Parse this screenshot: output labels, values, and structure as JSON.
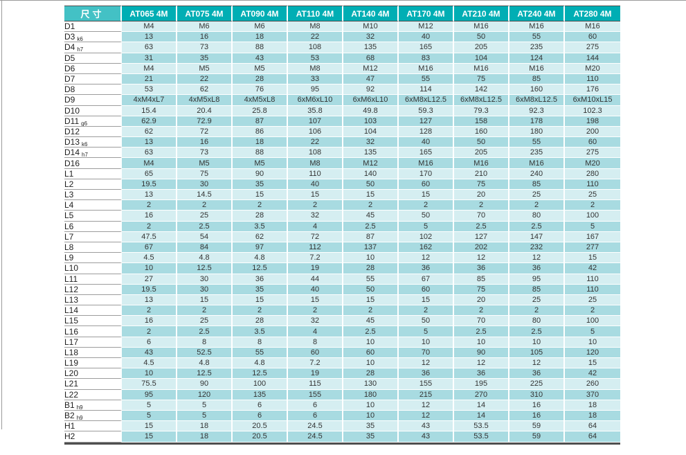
{
  "colors": {
    "header_teal": "#00aeb4",
    "size_header_teal": "#43c1c5",
    "row_light": "#d5eef1",
    "row_dark": "#a8dbe1",
    "header_text": "#ffffff",
    "body_text": "#333333",
    "label_underline": "#9c9c9c",
    "bottom_rule": "#4f4f4f"
  },
  "table": {
    "size_header": "尺寸",
    "columns": [
      "AT065 4M",
      "AT075 4M",
      "AT090 4M",
      "AT110 4M",
      "AT140 4M",
      "AT170 4M",
      "AT210 4M",
      "AT240 4M",
      "AT280 4M"
    ],
    "rows": [
      {
        "label": "D1",
        "sub": "",
        "values": [
          "M4",
          "M6",
          "M6",
          "M8",
          "M10",
          "M12",
          "M16",
          "M16",
          "M16"
        ]
      },
      {
        "label": "D3",
        "sub": "k6",
        "values": [
          "13",
          "16",
          "18",
          "22",
          "32",
          "40",
          "50",
          "55",
          "60"
        ]
      },
      {
        "label": "D4",
        "sub": "h7",
        "values": [
          "63",
          "73",
          "88",
          "108",
          "135",
          "165",
          "205",
          "235",
          "275"
        ]
      },
      {
        "label": "D5",
        "sub": "",
        "values": [
          "31",
          "35",
          "43",
          "53",
          "68",
          "83",
          "104",
          "124",
          "144"
        ]
      },
      {
        "label": "D6",
        "sub": "",
        "values": [
          "M4",
          "M5",
          "M5",
          "M8",
          "M12",
          "M16",
          "M16",
          "M16",
          "M20"
        ]
      },
      {
        "label": "D7",
        "sub": "",
        "values": [
          "21",
          "22",
          "28",
          "33",
          "47",
          "55",
          "75",
          "85",
          "110"
        ]
      },
      {
        "label": "D8",
        "sub": "",
        "values": [
          "53",
          "62",
          "76",
          "95",
          "92",
          "114",
          "142",
          "160",
          "176"
        ]
      },
      {
        "label": "D9",
        "sub": "",
        "values": [
          "4xM4xL7",
          "4xM5xL8",
          "4xM5xL8",
          "6xM6xL10",
          "6xM6xL10",
          "6xM8xL12.5",
          "6xM8xL12.5",
          "6xM8xL12.5",
          "6xM10xL15"
        ]
      },
      {
        "label": "D10",
        "sub": "",
        "values": [
          "15.4",
          "20.4",
          "25.8",
          "35.8",
          "49.8",
          "59.3",
          "79.3",
          "92.3",
          "102.3"
        ]
      },
      {
        "label": "D11",
        "sub": "g6",
        "values": [
          "62.9",
          "72.9",
          "87",
          "107",
          "103",
          "127",
          "158",
          "178",
          "198"
        ]
      },
      {
        "label": "D12",
        "sub": "",
        "values": [
          "62",
          "72",
          "86",
          "106",
          "104",
          "128",
          "160",
          "180",
          "200"
        ]
      },
      {
        "label": "D13",
        "sub": "k6",
        "values": [
          "13",
          "16",
          "18",
          "22",
          "32",
          "40",
          "50",
          "55",
          "60"
        ]
      },
      {
        "label": "D14",
        "sub": "h7",
        "values": [
          "63",
          "73",
          "88",
          "108",
          "135",
          "165",
          "205",
          "235",
          "275"
        ]
      },
      {
        "label": "D16",
        "sub": "",
        "values": [
          "M4",
          "M5",
          "M5",
          "M8",
          "M12",
          "M16",
          "M16",
          "M16",
          "M20"
        ]
      },
      {
        "label": "L1",
        "sub": "",
        "values": [
          "65",
          "75",
          "90",
          "110",
          "140",
          "170",
          "210",
          "240",
          "280"
        ]
      },
      {
        "label": "L2",
        "sub": "",
        "values": [
          "19.5",
          "30",
          "35",
          "40",
          "50",
          "60",
          "75",
          "85",
          "110"
        ]
      },
      {
        "label": "L3",
        "sub": "",
        "values": [
          "13",
          "14.5",
          "15",
          "15",
          "15",
          "15",
          "20",
          "25",
          "25"
        ]
      },
      {
        "label": "L4",
        "sub": "",
        "values": [
          "2",
          "2",
          "2",
          "2",
          "2",
          "2",
          "2",
          "2",
          "2"
        ]
      },
      {
        "label": "L5",
        "sub": "",
        "values": [
          "16",
          "25",
          "28",
          "32",
          "45",
          "50",
          "70",
          "80",
          "100"
        ]
      },
      {
        "label": "L6",
        "sub": "",
        "values": [
          "2",
          "2.5",
          "3.5",
          "4",
          "2.5",
          "5",
          "2.5",
          "2.5",
          "5"
        ]
      },
      {
        "label": "L7",
        "sub": "",
        "values": [
          "47.5",
          "54",
          "62",
          "72",
          "87",
          "102",
          "127",
          "147",
          "167"
        ]
      },
      {
        "label": "L8",
        "sub": "",
        "values": [
          "67",
          "84",
          "97",
          "112",
          "137",
          "162",
          "202",
          "232",
          "277"
        ]
      },
      {
        "label": "L9",
        "sub": "",
        "values": [
          "4.5",
          "4.8",
          "4.8",
          "7.2",
          "10",
          "12",
          "12",
          "12",
          "15"
        ]
      },
      {
        "label": "L10",
        "sub": "",
        "values": [
          "10",
          "12.5",
          "12.5",
          "19",
          "28",
          "36",
          "36",
          "36",
          "42"
        ]
      },
      {
        "label": "L11",
        "sub": "",
        "values": [
          "27",
          "30",
          "36",
          "44",
          "55",
          "67",
          "85",
          "95",
          "110"
        ]
      },
      {
        "label": "L12",
        "sub": "",
        "values": [
          "19.5",
          "30",
          "35",
          "40",
          "50",
          "60",
          "75",
          "85",
          "110"
        ]
      },
      {
        "label": "L13",
        "sub": "",
        "values": [
          "13",
          "15",
          "15",
          "15",
          "15",
          "15",
          "20",
          "25",
          "25"
        ]
      },
      {
        "label": "L14",
        "sub": "",
        "values": [
          "2",
          "2",
          "2",
          "2",
          "2",
          "2",
          "2",
          "2",
          "2"
        ]
      },
      {
        "label": "L15",
        "sub": "",
        "values": [
          "16",
          "25",
          "28",
          "32",
          "45",
          "50",
          "70",
          "80",
          "100"
        ]
      },
      {
        "label": "L16",
        "sub": "",
        "values": [
          "2",
          "2.5",
          "3.5",
          "4",
          "2.5",
          "5",
          "2.5",
          "2.5",
          "5"
        ]
      },
      {
        "label": "L17",
        "sub": "",
        "values": [
          "6",
          "8",
          "8",
          "8",
          "10",
          "10",
          "10",
          "10",
          "10"
        ]
      },
      {
        "label": "L18",
        "sub": "",
        "values": [
          "43",
          "52.5",
          "55",
          "60",
          "60",
          "70",
          "90",
          "105",
          "120"
        ]
      },
      {
        "label": "L19",
        "sub": "",
        "values": [
          "4.5",
          "4.8",
          "4.8",
          "7.2",
          "10",
          "12",
          "12",
          "12",
          "15"
        ]
      },
      {
        "label": "L20",
        "sub": "",
        "values": [
          "10",
          "12.5",
          "12.5",
          "19",
          "28",
          "36",
          "36",
          "36",
          "42"
        ]
      },
      {
        "label": "L21",
        "sub": "",
        "values": [
          "75.5",
          "90",
          "100",
          "115",
          "130",
          "155",
          "195",
          "225",
          "260"
        ]
      },
      {
        "label": "L22",
        "sub": "",
        "values": [
          "95",
          "120",
          "135",
          "155",
          "180",
          "215",
          "270",
          "310",
          "370"
        ]
      },
      {
        "label": "B1",
        "sub": "h9",
        "values": [
          "5",
          "5",
          "6",
          "6",
          "10",
          "12",
          "14",
          "16",
          "18"
        ]
      },
      {
        "label": "B2",
        "sub": "h9",
        "values": [
          "5",
          "5",
          "6",
          "6",
          "10",
          "12",
          "14",
          "16",
          "18"
        ]
      },
      {
        "label": "H1",
        "sub": "",
        "values": [
          "15",
          "18",
          "20.5",
          "24.5",
          "35",
          "43",
          "53.5",
          "59",
          "64"
        ]
      },
      {
        "label": "H2",
        "sub": "",
        "values": [
          "15",
          "18",
          "20.5",
          "24.5",
          "35",
          "43",
          "53.5",
          "59",
          "64"
        ]
      }
    ]
  }
}
